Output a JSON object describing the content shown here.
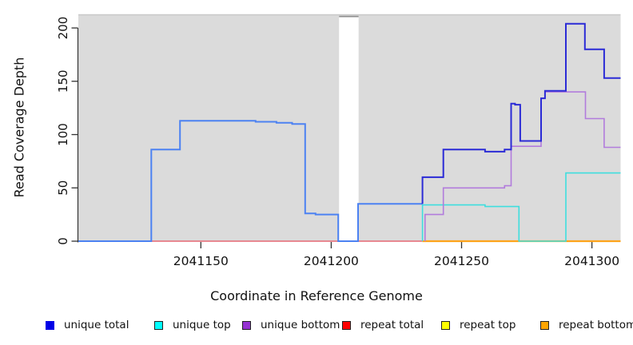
{
  "figure": {
    "background": "#ffffff",
    "plot_bg": "#dbdbdb",
    "plot_top_edge_color": "#c9c9c9",
    "gap_connector_color": "#8f8f8f",
    "axis_color": "#333333",
    "text_color": "#111111"
  },
  "chart_data": {
    "type": "line",
    "subtype": "step-coverage-plot",
    "title": "",
    "xlabel": "Coordinate in Reference Genome",
    "ylabel": "Read Coverage Depth",
    "xlim": [
      2041103,
      2041311
    ],
    "ylim": [
      0,
      212
    ],
    "x_ticks": [
      2041150,
      2041200,
      2041250,
      2041300
    ],
    "y_ticks": [
      0,
      50,
      100,
      150,
      200
    ],
    "grid": false,
    "legend_position": "bottom",
    "masked_region": {
      "from": 2041203,
      "to": 2041210.5,
      "fill": "#ffffff"
    },
    "series": [
      {
        "name": "repeat total",
        "legend_color": "#ff0000",
        "line_width": 1.4,
        "segments": [
          {
            "color": "#e56874",
            "points": [
              [
                2041131,
                0
              ],
              [
                2041235,
                0
              ]
            ]
          }
        ]
      },
      {
        "name": "repeat top",
        "legend_color": "#ffff00",
        "line_width": 1.4,
        "segments": []
      },
      {
        "name": "repeat bottom",
        "legend_color": "#ffa500",
        "line_width": 2.2,
        "segments": [
          {
            "color": "#ffa41b",
            "points": [
              [
                2041235,
                0
              ],
              [
                2041311,
                0
              ]
            ]
          }
        ]
      },
      {
        "name": "unique top",
        "legend_color": "#00ffff",
        "line_width": 1.6,
        "segments": [
          {
            "color": "#3edede",
            "points": [
              [
                2041235,
                0
              ],
              [
                2041235,
                34
              ],
              [
                2041259,
                34
              ],
              [
                2041259,
                32.5
              ],
              [
                2041272,
                32.5
              ],
              [
                2041272,
                0
              ],
              [
                2041290,
                0
              ],
              [
                2041290,
                64
              ],
              [
                2041311,
                64
              ]
            ]
          }
        ]
      },
      {
        "name": "unique bottom",
        "legend_color": "#9632d2",
        "line_width": 1.6,
        "segments": [
          {
            "color": "#b27cdc",
            "points": [
              [
                2041236,
                0
              ],
              [
                2041236,
                25
              ],
              [
                2041243,
                25
              ],
              [
                2041243,
                50
              ],
              [
                2041266.5,
                50
              ],
              [
                2041266.5,
                52
              ],
              [
                2041269,
                52
              ],
              [
                2041269,
                89
              ],
              [
                2041280.5,
                89
              ],
              [
                2041280.5,
                134
              ],
              [
                2041282,
                134
              ],
              [
                2041282,
                140
              ],
              [
                2041297.5,
                140
              ],
              [
                2041297.5,
                115
              ],
              [
                2041304.7,
                115
              ],
              [
                2041304.7,
                88
              ],
              [
                2041311,
                88
              ]
            ]
          }
        ]
      },
      {
        "name": "unique total",
        "legend_color": "#0000e6",
        "line_width": 2,
        "segments": [
          {
            "color": "#4c82f2",
            "points": [
              [
                2041103,
                0
              ],
              [
                2041131,
                0
              ],
              [
                2041131,
                86
              ],
              [
                2041142,
                86
              ],
              [
                2041142,
                113
              ],
              [
                2041171,
                113
              ],
              [
                2041171,
                112
              ],
              [
                2041179,
                112
              ],
              [
                2041179,
                111
              ],
              [
                2041185,
                111
              ],
              [
                2041185,
                110
              ],
              [
                2041190,
                110
              ],
              [
                2041190,
                26
              ],
              [
                2041194,
                26
              ],
              [
                2041194,
                25
              ],
              [
                2041202.7,
                25
              ],
              [
                2041202.7,
                0
              ],
              [
                2041210.3,
                0
              ],
              [
                2041210.3,
                35
              ],
              [
                2041235,
                35
              ]
            ]
          },
          {
            "color": "#2b2bd6",
            "points": [
              [
                2041235,
                35
              ],
              [
                2041235,
                60
              ],
              [
                2041243,
                60
              ],
              [
                2041243,
                86
              ],
              [
                2041259,
                86
              ],
              [
                2041259,
                84
              ],
              [
                2041266.5,
                84
              ],
              [
                2041266.5,
                86
              ],
              [
                2041269,
                86
              ],
              [
                2041269,
                129
              ],
              [
                2041270.5,
                129
              ],
              [
                2041270.5,
                128
              ],
              [
                2041272.5,
                128
              ],
              [
                2041272.5,
                94
              ],
              [
                2041280.5,
                94
              ],
              [
                2041280.5,
                134
              ],
              [
                2041282,
                134
              ],
              [
                2041282,
                141
              ],
              [
                2041290,
                141
              ],
              [
                2041290,
                204
              ],
              [
                2041297.3,
                204
              ],
              [
                2041297.3,
                180
              ],
              [
                2041304.7,
                180
              ],
              [
                2041304.7,
                153
              ],
              [
                2041311,
                153
              ]
            ]
          }
        ]
      }
    ]
  },
  "legend": {
    "items": [
      {
        "label": "unique total",
        "color": "#0000e6",
        "border": "#0000e6"
      },
      {
        "label": "unique top",
        "color": "#00ffff",
        "border": "#222222"
      },
      {
        "label": "unique bottom",
        "color": "#9632d2",
        "border": "#222222"
      },
      {
        "label": "repeat total",
        "color": "#ff0000",
        "border": "#222222"
      },
      {
        "label": "repeat top",
        "color": "#ffff00",
        "border": "#222222"
      },
      {
        "label": "repeat bottom",
        "color": "#ffa500",
        "border": "#222222"
      }
    ]
  }
}
